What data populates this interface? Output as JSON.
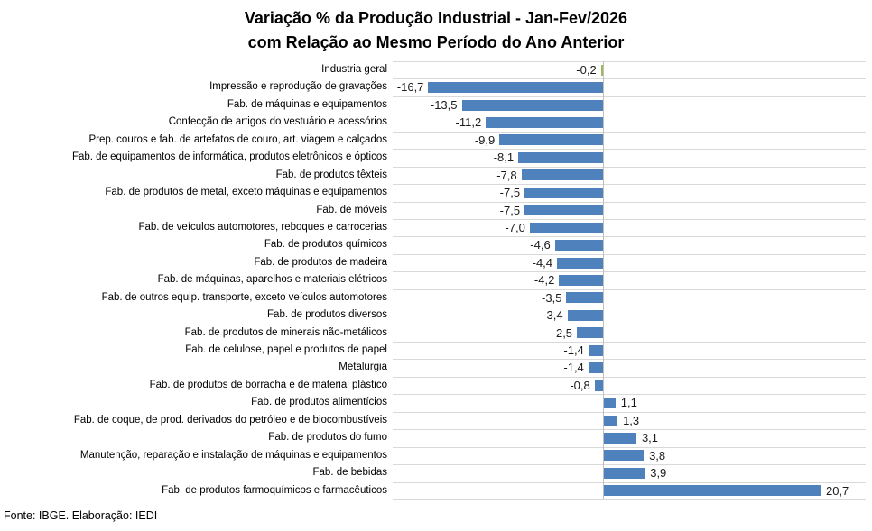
{
  "title": {
    "line1": "Variação % da Produção Industrial - Jan-Fev/2026",
    "line2": "com Relação ao Mesmo Período do Ano Anterior"
  },
  "footer": "Fonte: IBGE. Elaboração: IEDI",
  "chart_data": {
    "type": "bar",
    "orientation": "horizontal",
    "title": "Variação % da Produção Industrial - Jan-Fev/2026 com Relação ao Mesmo Período do Ano Anterior",
    "xlabel": "",
    "ylabel": "",
    "xlim": [
      -20.1,
      25.1
    ],
    "grid": "category separators horizontal, no value gridlines, no value axis labels",
    "legend": "none",
    "source": "Fonte: IBGE. Elaboração: IEDI",
    "highlight_index": 0,
    "categories": [
      "Industria geral",
      "Impressão e reprodução de gravações",
      "Fab. de máquinas e equipamentos",
      "Confecção de artigos do vestuário e acessórios",
      "Prep. couros e fab. de artefatos de couro, art. viagem e calçados",
      "Fab. de equipamentos de informática, produtos eletrônicos e ópticos",
      "Fab. de produtos têxteis",
      "Fab. de produtos de metal, exceto máquinas e equipamentos",
      "Fab. de móveis",
      "Fab. de veículos automotores, reboques e carrocerias",
      "Fab. de produtos químicos",
      "Fab. de produtos de madeira",
      "Fab. de máquinas, aparelhos e materiais elétricos",
      "Fab. de outros equip. transporte, exceto veículos automotores",
      "Fab. de produtos diversos",
      "Fab. de produtos de minerais não-metálicos",
      "Fab. de celulose, papel e produtos de papel",
      "Metalurgia",
      "Fab. de produtos de borracha e de material plástico",
      "Fab. de produtos alimentícios",
      "Fab. de coque, de prod. derivados do petróleo e de biocombustíveis",
      "Fab. de produtos do fumo",
      "Manutenção, reparação e instalação de máquinas e equipamentos",
      "Fab. de bebidas",
      "Fab. de produtos farmoquímicos e farmacêuticos"
    ],
    "values": [
      -0.2,
      -16.7,
      -13.5,
      -11.2,
      -9.9,
      -8.1,
      -7.8,
      -7.5,
      -7.5,
      -7.0,
      -4.6,
      -4.4,
      -4.2,
      -3.5,
      -3.4,
      -2.5,
      -1.4,
      -1.4,
      -0.8,
      1.1,
      1.3,
      3.1,
      3.8,
      3.9,
      20.7
    ],
    "value_labels": [
      "-0,2",
      "-16,7",
      "-13,5",
      "-11,2",
      "-9,9",
      "-8,1",
      "-7,8",
      "-7,5",
      "-7,5",
      "-7,0",
      "-4,6",
      "-4,4",
      "-4,2",
      "-3,5",
      "-3,4",
      "-2,5",
      "-1,4",
      "-1,4",
      "-0,8",
      "1,1",
      "1,3",
      "3,1",
      "3,8",
      "3,9",
      "20,7"
    ],
    "colors": {
      "bar": "#4F81BD",
      "highlight_bar": "#9BBB59",
      "gridline": "#D9D9D9",
      "axis_line": "#C0C0C0",
      "text": "#000000"
    }
  }
}
